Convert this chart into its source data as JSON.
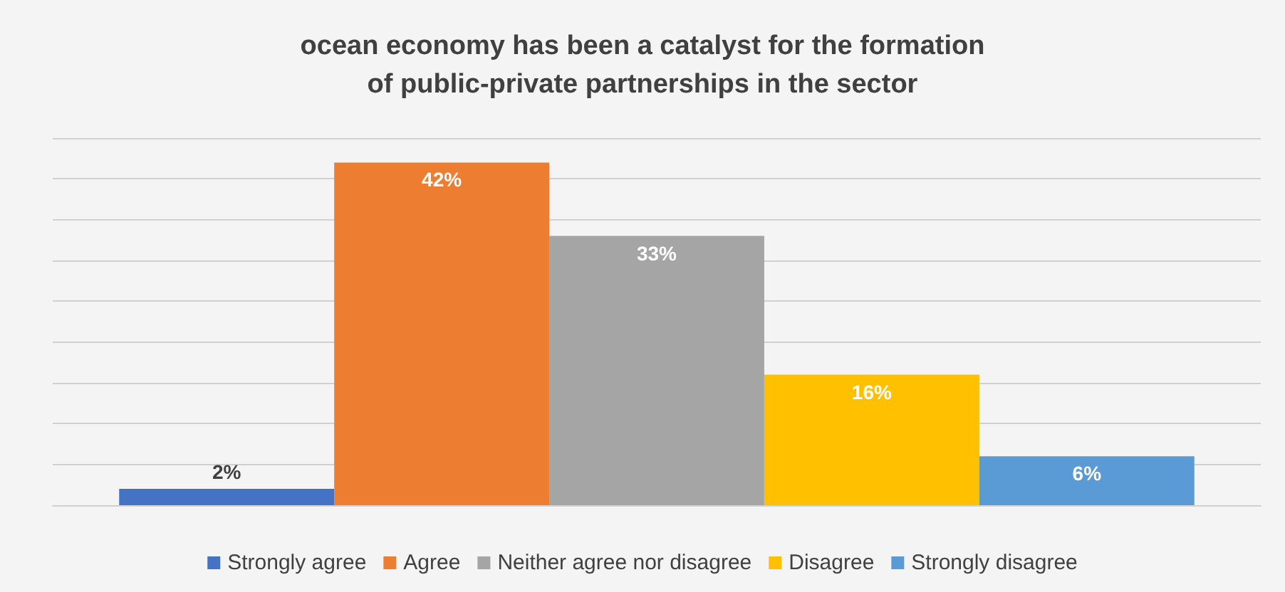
{
  "chart_data": {
    "type": "bar",
    "title": "ocean economy has been a catalyst for the formation\nof public-private partnerships in the sector",
    "categories": [
      null
    ],
    "series": [
      {
        "name": "Strongly agree",
        "color": "#4472c4",
        "values": [
          2
        ],
        "value_labels": [
          "2%"
        ]
      },
      {
        "name": "Agree",
        "color": "#ed7d31",
        "values": [
          42
        ],
        "value_labels": [
          "42%"
        ]
      },
      {
        "name": "Neither agree nor disagree",
        "color": "#a5a5a5",
        "values": [
          33
        ],
        "value_labels": [
          "33%"
        ]
      },
      {
        "name": "Disagree",
        "color": "#ffc000",
        "values": [
          16
        ],
        "value_labels": [
          "16%"
        ]
      },
      {
        "name": "Strongly disagree",
        "color": "#5b9bd5",
        "values": [
          6
        ],
        "value_labels": [
          "6%"
        ]
      }
    ],
    "ylim": [
      0,
      45
    ],
    "yticks": [
      {
        "value": 0,
        "label": null
      },
      {
        "value": 5,
        "label": null
      },
      {
        "value": 10,
        "label": null
      },
      {
        "value": 15,
        "label": null
      },
      {
        "value": 20,
        "label": null
      },
      {
        "value": 25,
        "label": null
      },
      {
        "value": 30,
        "label": null
      },
      {
        "value": 35,
        "label": null
      },
      {
        "value": 40,
        "label": null
      },
      {
        "value": 45,
        "label": null
      }
    ],
    "tick_labels": false,
    "grid": "y",
    "legend": "bottom"
  }
}
